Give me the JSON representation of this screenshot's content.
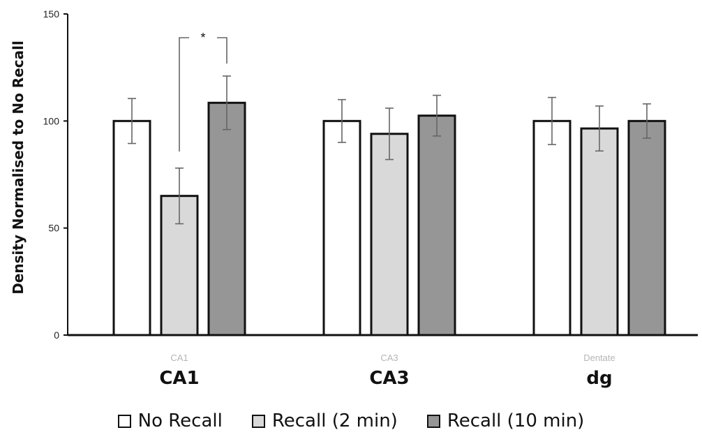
{
  "chart_data": {
    "type": "bar",
    "ylabel": "Density Normalised to No Recall",
    "xlabel": "",
    "ylim": [
      0,
      150
    ],
    "yticks": [
      0,
      50,
      100,
      150
    ],
    "categories": [
      "CA1",
      "CA3",
      "dg"
    ],
    "category_sublabels": [
      "CA1",
      "CA3",
      "Dentate"
    ],
    "series": [
      {
        "name": "No Recall",
        "color": "#ffffff",
        "values": [
          100,
          100,
          100
        ],
        "errors": [
          10.5,
          10,
          11
        ]
      },
      {
        "name": "Recall (2 min)",
        "color": "#d9d9d9",
        "values": [
          65,
          94,
          96.5
        ],
        "errors": [
          13,
          12,
          10.5
        ]
      },
      {
        "name": "Recall (10 min)",
        "color": "#969696",
        "values": [
          108.5,
          102.5,
          100
        ],
        "errors": [
          12.5,
          9.5,
          8
        ]
      }
    ],
    "significance": [
      {
        "category": "CA1",
        "from_series": 1,
        "to_series": 2,
        "label": "*"
      }
    ],
    "legend_position": "bottom",
    "grid": false
  }
}
